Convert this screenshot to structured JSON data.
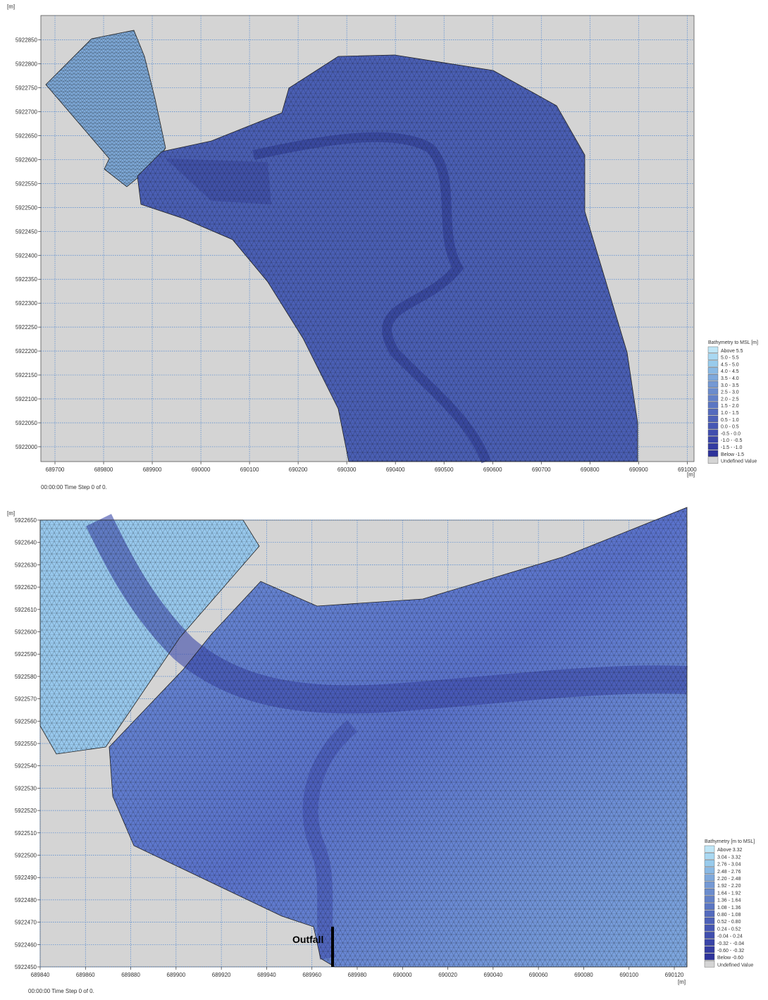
{
  "panels": [
    {
      "y_unit": "[m]",
      "x_unit": "[m]",
      "xlim": [
        689671,
        691014
      ],
      "ylim": [
        5921969,
        5922901
      ],
      "xticks": [
        689700,
        689800,
        689900,
        690000,
        690100,
        690200,
        690300,
        690400,
        690500,
        690600,
        690700,
        690800,
        690900,
        691000
      ],
      "yticks": [
        5922000,
        5922050,
        5922100,
        5922150,
        5922200,
        5922250,
        5922300,
        5922350,
        5922400,
        5922450,
        5922500,
        5922550,
        5922600,
        5922650,
        5922700,
        5922750,
        5922800,
        5922850
      ],
      "legend": {
        "title": "Bathymetry to MSL [m]",
        "items": [
          {
            "label": "Above 5.5",
            "color": "#bfe6f7"
          },
          {
            "label": "5.0 - 5.5",
            "color": "#a9d8f2"
          },
          {
            "label": "4.5 - 5.0",
            "color": "#98cbec"
          },
          {
            "label": "4.0 - 4.5",
            "color": "#8ab9e4"
          },
          {
            "label": "3.5 - 4.0",
            "color": "#7fa9dc"
          },
          {
            "label": "3.0 - 3.5",
            "color": "#7599d4"
          },
          {
            "label": "2.5 - 3.0",
            "color": "#6b8ccd"
          },
          {
            "label": "2.0 - 2.5",
            "color": "#6381c8"
          },
          {
            "label": "1.5 - 2.0",
            "color": "#5b76c3"
          },
          {
            "label": "1.0 - 1.5",
            "color": "#546bbe"
          },
          {
            "label": "0.5 - 1.0",
            "color": "#4d61b9"
          },
          {
            "label": "0.0 - 0.5",
            "color": "#4657b4"
          },
          {
            "label": "-0.5 - 0.0",
            "color": "#404eae"
          },
          {
            "label": "-1.0 - -0.5",
            "color": "#3a45a8"
          },
          {
            "label": "-1.5 - -1.0",
            "color": "#343ca2"
          },
          {
            "label": "Below -1.5",
            "color": "#2e339b"
          },
          {
            "label": "Undefined Value",
            "color": "#d4d4d4"
          }
        ]
      },
      "status": "00:00:00 Time Step 0 of 0."
    },
    {
      "y_unit": "[m]",
      "x_unit": "[m]",
      "xlim": [
        689840,
        690125.6
      ],
      "ylim": [
        5922450,
        5922650
      ],
      "xticks": [
        689840,
        689860,
        689880,
        689900,
        689920,
        689940,
        689960,
        689980,
        690000,
        690020,
        690040,
        690060,
        690080,
        690100,
        690120
      ],
      "yticks": [
        5922450,
        5922460,
        5922470,
        5922480,
        5922490,
        5922500,
        5922510,
        5922520,
        5922530,
        5922540,
        5922550,
        5922560,
        5922570,
        5922580,
        5922590,
        5922600,
        5922610,
        5922620,
        5922630,
        5922640,
        5922650
      ],
      "legend": {
        "title": "Bathymetry [m to MSL]",
        "items": [
          {
            "label": "Above 3.32",
            "color": "#bfe6f7"
          },
          {
            "label": "3.04 - 3.32",
            "color": "#a9d8f2"
          },
          {
            "label": "2.76 - 3.04",
            "color": "#98cbec"
          },
          {
            "label": "2.48 - 2.76",
            "color": "#8ab9e4"
          },
          {
            "label": "2.20 - 2.48",
            "color": "#7fa9dc"
          },
          {
            "label": "1.92 - 2.20",
            "color": "#7599d4"
          },
          {
            "label": "1.64 - 1.92",
            "color": "#6b8ccd"
          },
          {
            "label": "1.36 - 1.64",
            "color": "#6381c8"
          },
          {
            "label": "1.08 - 1.36",
            "color": "#5b76c3"
          },
          {
            "label": "0.80 - 1.08",
            "color": "#546bbe"
          },
          {
            "label": "0.52 - 0.80",
            "color": "#4d61b9"
          },
          {
            "label": "0.24 - 0.52",
            "color": "#4657b4"
          },
          {
            "label": "-0.04 - 0.24",
            "color": "#404eae"
          },
          {
            "label": "-0.32 - -0.04",
            "color": "#3a45a8"
          },
          {
            "label": "-0.60 - -0.32",
            "color": "#343ca2"
          },
          {
            "label": "Below -0.60",
            "color": "#2e339b"
          },
          {
            "label": "Undefined Value",
            "color": "#d4d4d4"
          }
        ]
      },
      "status": "00:00:00 Time Step 0 of 0.",
      "annotation": "Outfall"
    }
  ]
}
